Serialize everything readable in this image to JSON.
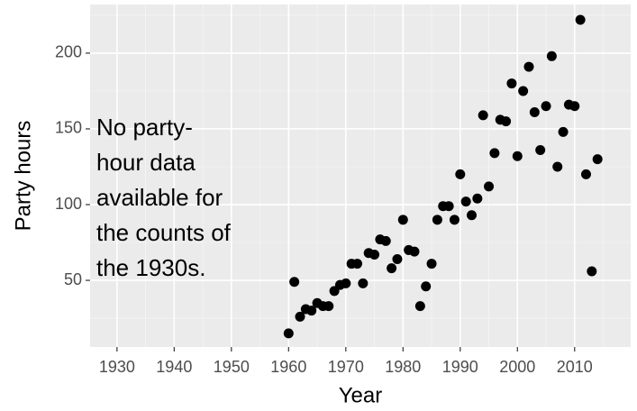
{
  "chart_data": {
    "type": "scatter",
    "x_label": "Year",
    "y_label": "Party hours",
    "annotation": [
      "No party-",
      "hour data",
      "available for",
      "the counts of",
      "the 1930s."
    ],
    "x": [
      1960,
      1961,
      1962,
      1963,
      1964,
      1965,
      1966,
      1967,
      1968,
      1969,
      1970,
      1971,
      1972,
      1973,
      1974,
      1975,
      1976,
      1977,
      1978,
      1979,
      1980,
      1981,
      1982,
      1983,
      1984,
      1985,
      1986,
      1987,
      1988,
      1989,
      1990,
      1991,
      1992,
      1993,
      1994,
      1995,
      1996,
      1997,
      1998,
      1999,
      2000,
      2001,
      2002,
      2003,
      2004,
      2005,
      2006,
      2007,
      2008,
      2009,
      2010,
      2011,
      2012,
      2013,
      2014
    ],
    "values": [
      15,
      49,
      26,
      31,
      30,
      35,
      33,
      33,
      43,
      47,
      48,
      61,
      61,
      48,
      68,
      67,
      77,
      76,
      58,
      64,
      90,
      70,
      69,
      33,
      46,
      61,
      90,
      99,
      99,
      90,
      120,
      102,
      93,
      104,
      159,
      112,
      134,
      156,
      155,
      180,
      132,
      175,
      191,
      161,
      136,
      165,
      198,
      125,
      148,
      166,
      165,
      222,
      120,
      56,
      130
    ],
    "color": "#000000",
    "xlim": [
      1925.3,
      2019.8
    ],
    "ylim": [
      6.0,
      232.1
    ],
    "xticks": [
      1930,
      1940,
      1950,
      1960,
      1970,
      1980,
      1990,
      2000,
      2010
    ],
    "yticks": [
      50,
      100,
      150,
      200
    ],
    "grid": true
  }
}
